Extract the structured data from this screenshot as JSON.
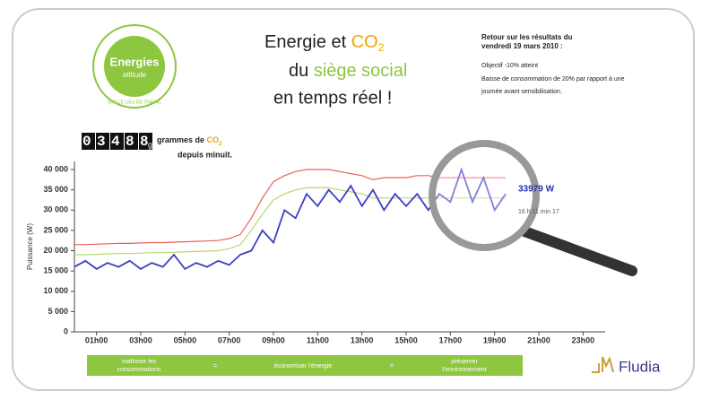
{
  "logo": {
    "name": "Energies",
    "sub": "attitude",
    "ring": "SUR LE LIEU DE TRAVAIL"
  },
  "header": {
    "line1": "Energie et ",
    "co": "CO",
    "sub2": "2",
    "line2a": "du ",
    "line2b": "siège social",
    "line3": "en temps réel !"
  },
  "info": {
    "title1": "Retour sur les résultats du",
    "title2": "vendredi 19 mars 2010 :",
    "text1": "Objectif -10% atteint",
    "text2": "Baisse de consommation de 20% par rapport à une",
    "text3": "journée avant sensibilisation."
  },
  "counter": {
    "digits": "03488",
    "unit": "g",
    "text1": "grammes de ",
    "co": "CO",
    "sub2": "2",
    "text2": "depuis minuit."
  },
  "chart_data": {
    "type": "line",
    "ylabel": "Puissance (W)",
    "xlim": [
      0,
      24
    ],
    "ylim": [
      0,
      42000
    ],
    "xticks": [
      {
        "value": 1,
        "label": "01h00"
      },
      {
        "value": 3,
        "label": "03h00"
      },
      {
        "value": 5,
        "label": "05h00"
      },
      {
        "value": 7,
        "label": "07h00"
      },
      {
        "value": 9,
        "label": "09h00"
      },
      {
        "value": 11,
        "label": "11h00"
      },
      {
        "value": 13,
        "label": "13h00"
      },
      {
        "value": 15,
        "label": "15h00"
      },
      {
        "value": 17,
        "label": "17h00"
      },
      {
        "value": 19,
        "label": "19h00"
      },
      {
        "value": 21,
        "label": "21h00"
      },
      {
        "value": 23,
        "label": "23h00"
      }
    ],
    "yticks": [
      0,
      {
        "value": 5000,
        "label": "5 000"
      },
      {
        "value": 10000,
        "label": "10 000"
      },
      {
        "value": 15000,
        "label": "15 000"
      },
      {
        "value": 20000,
        "label": "20 000"
      },
      {
        "value": 25000,
        "label": "25 000"
      },
      {
        "value": 30000,
        "label": "30 000"
      },
      {
        "value": 35000,
        "label": "35 000"
      },
      {
        "value": 40000,
        "label": "40 000"
      }
    ],
    "x": [
      0,
      0.5,
      1,
      1.5,
      2,
      2.5,
      3,
      3.5,
      4,
      4.5,
      5,
      5.5,
      6,
      6.5,
      7,
      7.5,
      8,
      8.5,
      9,
      9.5,
      10,
      10.5,
      11,
      11.5,
      12,
      12.5,
      13,
      13.5,
      14,
      14.5,
      15,
      15.5,
      16,
      16.5,
      17,
      17.5,
      18,
      18.5,
      19,
      19.5
    ],
    "series": [
      {
        "color": "#e8605a",
        "values": [
          21500,
          21500,
          21600,
          21700,
          21800,
          21800,
          21900,
          22000,
          22000,
          22100,
          22200,
          22300,
          22400,
          22500,
          23000,
          24000,
          28000,
          33000,
          37000,
          38500,
          39500,
          40000,
          40000,
          40000,
          39500,
          39000,
          38500,
          37500,
          38000,
          38000,
          38000,
          38500,
          38500,
          38000,
          38000,
          38000,
          38000,
          38000,
          38000,
          38000
        ]
      },
      {
        "color": "#b5d96a",
        "values": [
          19000,
          19000,
          19100,
          19200,
          19300,
          19300,
          19400,
          19500,
          19500,
          19600,
          19700,
          19800,
          19900,
          20000,
          20500,
          21500,
          25000,
          29000,
          32500,
          34000,
          35000,
          35500,
          35500,
          35500,
          35000,
          34500,
          34000,
          33000,
          33000,
          33000,
          33000,
          33000,
          33000,
          33000,
          33000,
          33000,
          33000,
          33000,
          33000,
          33000
        ]
      },
      {
        "color": "#3a3fc4",
        "values": [
          16000,
          17500,
          15500,
          17000,
          16000,
          17500,
          15500,
          17000,
          16000,
          19000,
          15500,
          17000,
          16000,
          17500,
          16500,
          19000,
          20000,
          25000,
          22000,
          30000,
          28000,
          34000,
          31000,
          35000,
          32000,
          36000,
          31000,
          35000,
          30000,
          34000,
          31000,
          34000,
          30000,
          34000,
          32000,
          40000,
          32000,
          38000,
          30000,
          34000
        ]
      }
    ],
    "annotations": [
      "33979 W",
      "16 h 11 min 17"
    ]
  },
  "footer": {
    "a": "maîtriser les",
    "a2": "consommations",
    "eq1": "=",
    "b": "économiser l'énergie",
    "eq2": "=",
    "c": "préserver",
    "c2": "l'environnement",
    "brand": "Fludia"
  }
}
